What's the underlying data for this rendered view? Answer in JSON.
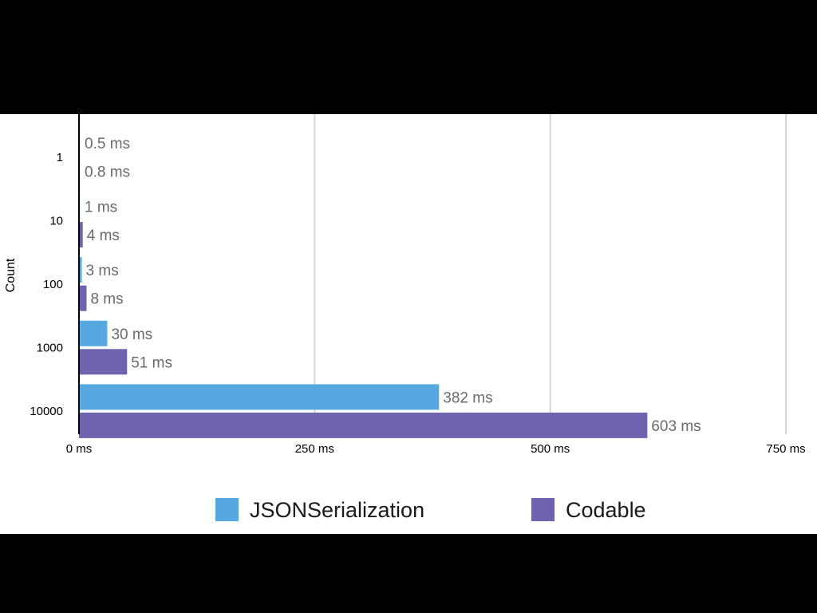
{
  "chart_data": {
    "type": "bar",
    "orientation": "horizontal",
    "ylabel": "Count",
    "xlabel": "",
    "categories": [
      "1",
      "10",
      "100",
      "1000",
      "10000"
    ],
    "series": [
      {
        "name": "JSONSerialization",
        "color": "#55a9e0",
        "values": [
          0.5,
          1,
          3,
          30,
          382
        ],
        "labels": [
          "0.5 ms",
          "1 ms",
          "3 ms",
          "30 ms",
          "382 ms"
        ]
      },
      {
        "name": "Codable",
        "color": "#6e63ad",
        "values": [
          0.8,
          4,
          8,
          51,
          603
        ],
        "labels": [
          "0.8 ms",
          "4 ms",
          "8 ms",
          "51 ms",
          "603 ms"
        ]
      }
    ],
    "xlim": [
      0,
      750
    ],
    "xticks": [
      0,
      250,
      500,
      750
    ],
    "xtick_labels": [
      "0 ms",
      "250 ms",
      "500 ms",
      "750 ms"
    ],
    "grid": true,
    "legend_position": "bottom"
  }
}
